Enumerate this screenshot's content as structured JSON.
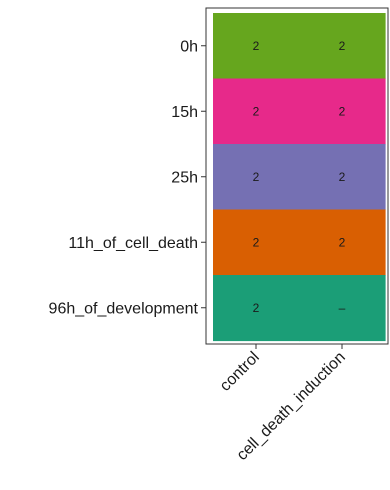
{
  "chart_data": {
    "type": "heatmap",
    "rows": [
      "0h",
      "15h",
      "25h",
      "11h_of_cell_death",
      "96h_of_development"
    ],
    "columns": [
      "control",
      "cell_death_induction"
    ],
    "row_colors": [
      "#66a61e",
      "#e7298a",
      "#7570b3",
      "#d95f02",
      "#1b9e77"
    ],
    "cells": [
      [
        "2",
        "2"
      ],
      [
        "2",
        "2"
      ],
      [
        "2",
        "2"
      ],
      [
        "2",
        "2"
      ],
      [
        "2",
        "–"
      ]
    ],
    "panel_border_color": "#333333",
    "grid": false,
    "legend": "none"
  }
}
